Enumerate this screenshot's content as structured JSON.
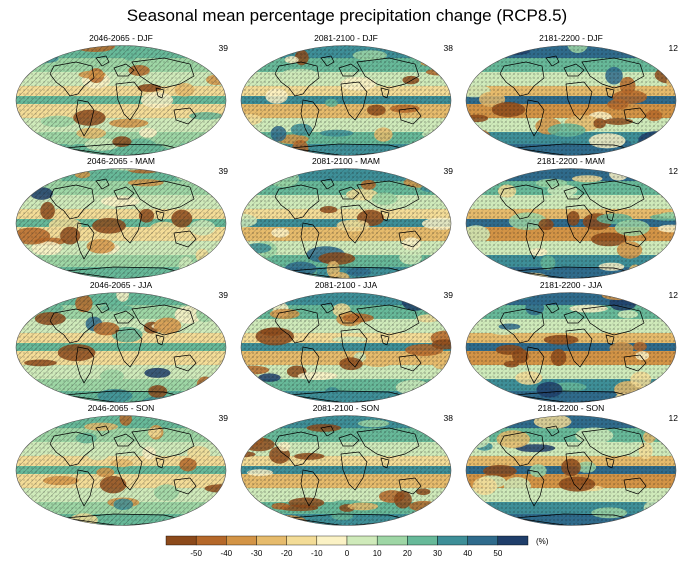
{
  "title": "Seasonal mean percentage precipitation change (RCP8.5)",
  "panels": [
    {
      "label": "2046-2065 - DJF",
      "models": "39"
    },
    {
      "label": "2081-2100 - DJF",
      "models": "38"
    },
    {
      "label": "2181-2200 - DJF",
      "models": "12"
    },
    {
      "label": "2046-2065 - MAM",
      "models": "39"
    },
    {
      "label": "2081-2100 - MAM",
      "models": "39"
    },
    {
      "label": "2181-2200 - MAM",
      "models": "12"
    },
    {
      "label": "2046-2065 - JJA",
      "models": "39"
    },
    {
      "label": "2081-2100 - JJA",
      "models": "39"
    },
    {
      "label": "2181-2200 - JJA",
      "models": "12"
    },
    {
      "label": "2046-2065 - SON",
      "models": "39"
    },
    {
      "label": "2081-2100 - SON",
      "models": "38"
    },
    {
      "label": "2181-2200 - SON",
      "models": "12"
    }
  ],
  "colorbar": {
    "ticks": [
      "-50",
      "-40",
      "-30",
      "-20",
      "-10",
      "0",
      "10",
      "20",
      "30",
      "40",
      "50"
    ],
    "unit": "(%)",
    "colors": [
      "#8c4a1b",
      "#b5682a",
      "#d39446",
      "#e6bb6c",
      "#f3dc97",
      "#fbf2c5",
      "#cfeaba",
      "#9ed6a5",
      "#67b999",
      "#3e8f98",
      "#2f6b8c",
      "#1f3e6a"
    ]
  }
}
